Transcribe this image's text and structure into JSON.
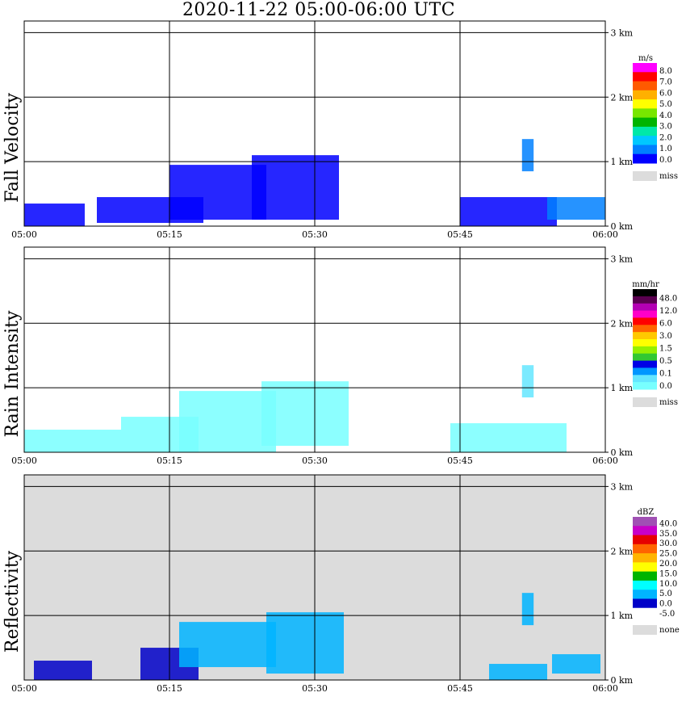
{
  "title": "2020-11-22   05:00-06:00 UTC",
  "chart_data": [
    {
      "type": "heatmap",
      "panel": "Fall Velocity",
      "ylabel": "Fall Velocity",
      "x_ticks": [
        "05:00",
        "05:15",
        "05:30",
        "05:45",
        "06:00"
      ],
      "y_ticks": [
        "0 km",
        "1 km",
        "2 km",
        "3 km"
      ],
      "xlim": [
        "05:00",
        "06:00"
      ],
      "ylim_km": [
        0,
        3.0
      ],
      "background": "#ffffff",
      "grid": true,
      "colorbar": {
        "unit": "m/s",
        "labels": [
          "8.0",
          "7.0",
          "6.0",
          "5.0",
          "4.0",
          "3.0",
          "2.0",
          "1.0",
          "0.0"
        ],
        "missing_label": "miss",
        "colors": [
          "#ff00ff",
          "#ff0000",
          "#ff5a00",
          "#ffb000",
          "#ffff00",
          "#78e600",
          "#00b400",
          "#00e8a8",
          "#00c8ff",
          "#0080ff",
          "#0000ff"
        ],
        "missing_color": "#dcdcdc"
      },
      "blobs": [
        {
          "time": "05:03",
          "top_km": 0.35,
          "bottom_km": 0.0,
          "width_min": 6.5,
          "color": "#0000ff"
        },
        {
          "time": "05:13",
          "top_km": 0.45,
          "bottom_km": 0.05,
          "width_min": 11,
          "color": "#0000ff"
        },
        {
          "time": "05:20",
          "top_km": 0.95,
          "bottom_km": 0.1,
          "width_min": 10,
          "color": "#0000ff"
        },
        {
          "time": "05:28",
          "top_km": 1.1,
          "bottom_km": 0.1,
          "width_min": 9,
          "color": "#0000ff"
        },
        {
          "time": "05:50",
          "top_km": 0.45,
          "bottom_km": 0.0,
          "width_min": 10,
          "color": "#0000ff"
        },
        {
          "time": "05:57",
          "top_km": 0.45,
          "bottom_km": 0.1,
          "width_min": 6,
          "color": "#0080ff"
        },
        {
          "time": "05:52",
          "top_km": 1.35,
          "bottom_km": 0.85,
          "width_min": 1.2,
          "color": "#0080ff"
        }
      ]
    },
    {
      "type": "heatmap",
      "panel": "Rain Intensity",
      "ylabel": "Rain Intensity",
      "x_ticks": [
        "05:00",
        "05:15",
        "05:30",
        "05:45",
        "06:00"
      ],
      "y_ticks": [
        "0 km",
        "1 km",
        "2 km",
        "3 km"
      ],
      "xlim": [
        "05:00",
        "06:00"
      ],
      "ylim_km": [
        0,
        3.0
      ],
      "background": "#ffffff",
      "grid": true,
      "colorbar": {
        "unit": "mm/hr",
        "labels": [
          "48.0",
          "12.0",
          "6.0",
          "3.0",
          "1.5",
          "0.5",
          "0.1",
          "0.0"
        ],
        "missing_label": "miss",
        "colors": [
          "#000000",
          "#5a0050",
          "#b400b4",
          "#ff00c8",
          "#ff0000",
          "#ff6400",
          "#ffc800",
          "#ffff00",
          "#96f000",
          "#32c832",
          "#0000e6",
          "#0096ff",
          "#64e6ff",
          "#78ffff"
        ],
        "missing_color": "#dcdcdc"
      },
      "blobs": [
        {
          "time": "05:05",
          "top_km": 0.35,
          "bottom_km": 0.0,
          "width_min": 10,
          "color": "#78ffff"
        },
        {
          "time": "05:14",
          "top_km": 0.55,
          "bottom_km": 0.0,
          "width_min": 8,
          "color": "#78ffff"
        },
        {
          "time": "05:21",
          "top_km": 0.95,
          "bottom_km": 0.0,
          "width_min": 10,
          "color": "#78ffff"
        },
        {
          "time": "05:29",
          "top_km": 1.1,
          "bottom_km": 0.1,
          "width_min": 9,
          "color": "#78ffff"
        },
        {
          "time": "05:50",
          "top_km": 0.45,
          "bottom_km": 0.0,
          "width_min": 12,
          "color": "#78ffff"
        },
        {
          "time": "05:52",
          "top_km": 1.35,
          "bottom_km": 0.85,
          "width_min": 1.2,
          "color": "#64e6ff"
        }
      ]
    },
    {
      "type": "heatmap",
      "panel": "Reflectivity",
      "ylabel": "Reflectivity",
      "x_ticks": [
        "05:00",
        "05:15",
        "05:30",
        "05:45",
        "06:00"
      ],
      "y_ticks": [
        "0 km",
        "1 km",
        "2 km",
        "3 km"
      ],
      "xlim": [
        "05:00",
        "06:00"
      ],
      "ylim_km": [
        0,
        3.0
      ],
      "background": "#dcdcdc",
      "grid": true,
      "colorbar": {
        "unit": "dBZ",
        "labels": [
          "40.0",
          "35.0",
          "30.0",
          "25.0",
          "20.0",
          "15.0",
          "10.0",
          "5.0",
          "0.0",
          "-5.0"
        ],
        "missing_label": "none",
        "colors": [
          "#a050b4",
          "#c800c8",
          "#e60000",
          "#ff6400",
          "#ffb400",
          "#ffff00",
          "#00b400",
          "#00ffff",
          "#00b4ff",
          "#0000c8",
          "#ffffff"
        ],
        "missing_color": "#dcdcdc"
      },
      "blobs": [
        {
          "time": "05:04",
          "top_km": 0.3,
          "bottom_km": 0.0,
          "width_min": 6,
          "color": "#0000c8"
        },
        {
          "time": "05:15",
          "top_km": 0.5,
          "bottom_km": 0.0,
          "width_min": 6,
          "color": "#0000c8"
        },
        {
          "time": "05:21",
          "top_km": 0.9,
          "bottom_km": 0.2,
          "width_min": 10,
          "color": "#00b4ff"
        },
        {
          "time": "05:29",
          "top_km": 1.05,
          "bottom_km": 0.1,
          "width_min": 8,
          "color": "#00b4ff"
        },
        {
          "time": "05:51",
          "top_km": 0.25,
          "bottom_km": 0.0,
          "width_min": 6,
          "color": "#00b4ff"
        },
        {
          "time": "05:57",
          "top_km": 0.4,
          "bottom_km": 0.1,
          "width_min": 5,
          "color": "#00b4ff"
        },
        {
          "time": "05:52",
          "top_km": 1.35,
          "bottom_km": 0.85,
          "width_min": 1.2,
          "color": "#00b4ff"
        }
      ]
    }
  ]
}
